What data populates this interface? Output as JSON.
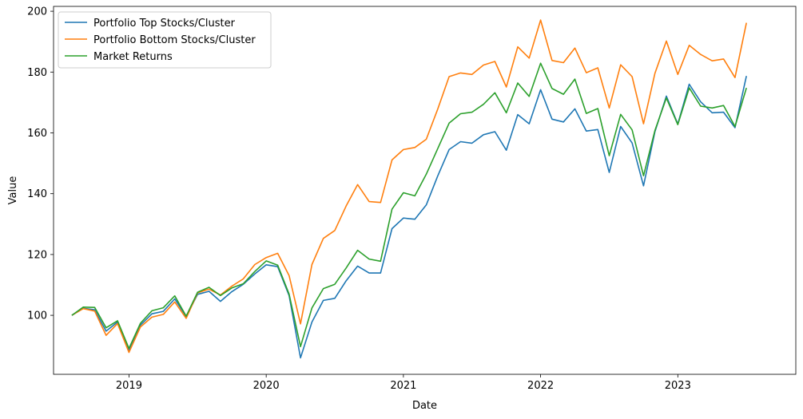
{
  "chart_data": {
    "type": "line",
    "xlabel": "Date",
    "ylabel": "Value",
    "x_start": "2018-08",
    "x_ticks": [
      "2019",
      "2020",
      "2021",
      "2022",
      "2023"
    ],
    "y_ticks": [
      100,
      120,
      140,
      160,
      180,
      200
    ],
    "legend_position": "top-left",
    "grid": false,
    "series": [
      {
        "name": "Portfolio Top Stocks/Cluster",
        "color": "#1f77b4",
        "values": [
          100,
          102.3,
          101.8,
          94.8,
          97.8,
          88.6,
          96.8,
          100.5,
          101.3,
          105.4,
          99.6,
          106.9,
          107.9,
          104.6,
          107.8,
          110.2,
          113.6,
          116.6,
          116.0,
          106.5,
          86.0,
          97.8,
          104.9,
          105.6,
          111.4,
          116.2,
          113.9,
          113.9,
          128.5,
          132.0,
          131.6,
          136.3,
          145.8,
          154.5,
          157.1,
          156.6,
          159.4,
          160.4,
          154.3,
          166.0,
          163.0,
          174.2,
          164.5,
          163.6,
          167.9,
          160.6,
          161.1,
          147.0,
          162.1,
          156.7,
          142.6,
          160.4,
          172.1,
          162.9,
          176.0,
          170.2,
          166.6,
          166.8,
          161.7,
          178.7
        ]
      },
      {
        "name": "Portfolio Bottom Stocks/Cluster",
        "color": "#ff7f0e",
        "values": [
          100,
          102.2,
          101.4,
          93.4,
          97.3,
          87.8,
          96.2,
          99.4,
          100.3,
          104.4,
          99.0,
          107.4,
          108.6,
          106.7,
          109.6,
          112.0,
          116.7,
          119.0,
          120.4,
          113.1,
          97.2,
          116.7,
          125.3,
          127.9,
          136.0,
          143.0,
          137.4,
          137.1,
          151.1,
          154.5,
          155.2,
          157.9,
          167.8,
          178.5,
          179.7,
          179.2,
          182.3,
          183.5,
          175.1,
          188.3,
          184.6,
          197.1,
          183.8,
          183.1,
          187.9,
          179.8,
          181.4,
          168.2,
          182.4,
          178.5,
          163.0,
          179.6,
          190.2,
          179.2,
          188.8,
          185.8,
          183.7,
          184.3,
          178.2,
          196.2
        ]
      },
      {
        "name": "Market Returns",
        "color": "#2ca02c",
        "values": [
          100,
          102.7,
          102.6,
          95.9,
          98.2,
          89.1,
          97.4,
          101.5,
          102.5,
          106.4,
          99.7,
          107.6,
          109.2,
          106.5,
          109.0,
          110.4,
          114.4,
          117.9,
          116.5,
          107.0,
          89.7,
          102.4,
          108.8,
          110.2,
          115.6,
          121.4,
          118.5,
          117.8,
          134.9,
          140.3,
          139.3,
          146.4,
          154.8,
          163.2,
          166.3,
          166.8,
          169.4,
          173.2,
          166.6,
          176.4,
          172.0,
          182.9,
          174.6,
          172.7,
          177.7,
          166.4,
          168.0,
          152.5,
          166.1,
          161.0,
          145.9,
          160.8,
          171.5,
          162.7,
          174.8,
          168.8,
          168.2,
          169.0,
          162.1,
          174.8
        ]
      }
    ]
  }
}
